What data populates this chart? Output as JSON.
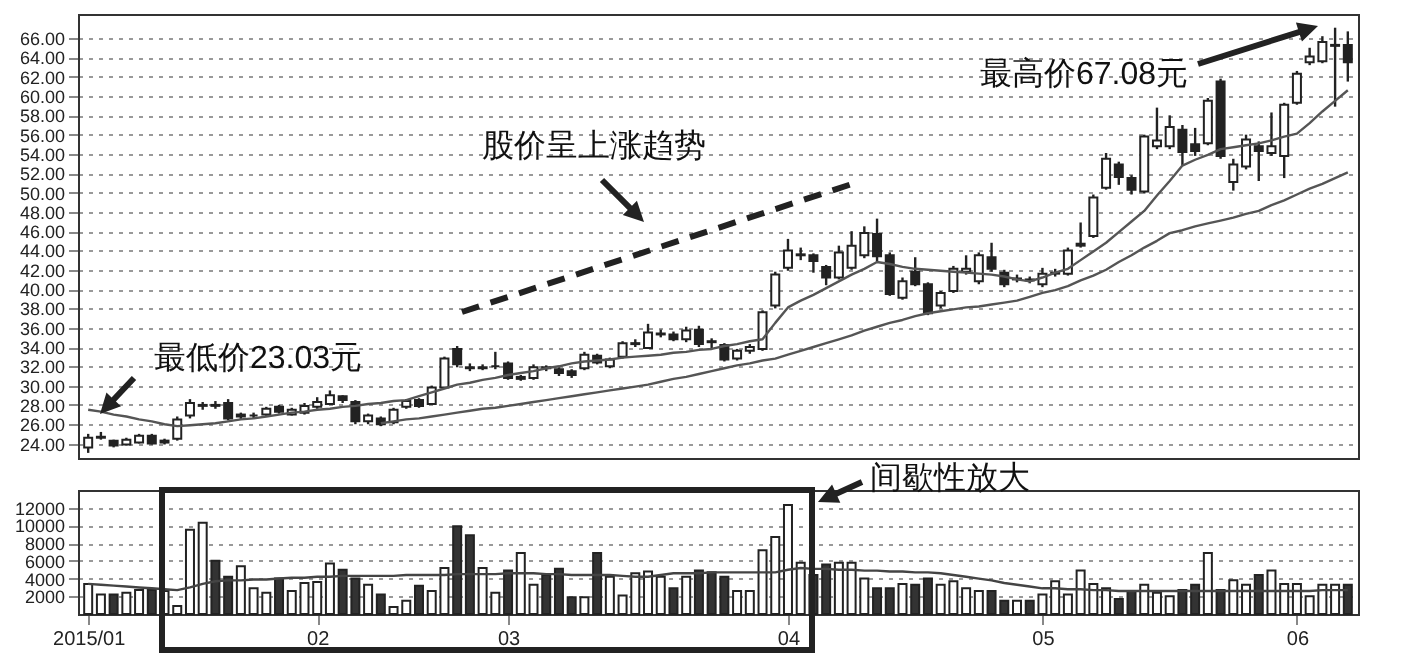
{
  "chart_data": [
    {
      "type": "candlestick",
      "color": "#222222",
      "categories": [
        "2015/01",
        null,
        null,
        null,
        null,
        null,
        null,
        null,
        null,
        null,
        null,
        null,
        null,
        null,
        null,
        null,
        null,
        null,
        "02",
        null,
        null,
        null,
        null,
        null,
        null,
        null,
        null,
        null,
        null,
        null,
        null,
        null,
        null,
        "03",
        null,
        null,
        null,
        null,
        null,
        null,
        null,
        null,
        null,
        null,
        null,
        null,
        null,
        null,
        null,
        null,
        null,
        null,
        null,
        null,
        null,
        "04",
        null,
        null,
        null,
        null,
        null,
        null,
        null,
        null,
        null,
        null,
        null,
        null,
        null,
        null,
        null,
        null,
        null,
        null,
        null,
        "05",
        null,
        null,
        null,
        null,
        null,
        null,
        null,
        null,
        null,
        null,
        null,
        null,
        null,
        null,
        null,
        null,
        null,
        null,
        null,
        "06",
        null,
        null,
        null,
        null
      ],
      "ohlc": [
        [
          23.6,
          25,
          23.03,
          24.6
        ],
        [
          24.6,
          25.2,
          24.4,
          24.7
        ],
        [
          24.3,
          24.4,
          23.6,
          23.8
        ],
        [
          23.9,
          24.6,
          23.8,
          24.4
        ],
        [
          24.1,
          25,
          24,
          24.8
        ],
        [
          24.8,
          25,
          23.9,
          24
        ],
        [
          24.1,
          24.5,
          23.9,
          24.3
        ],
        [
          24.5,
          26.8,
          24.3,
          26.5
        ],
        [
          26.9,
          28.6,
          26.6,
          28.2
        ],
        [
          27.9,
          28.3,
          27.5,
          28
        ],
        [
          28,
          28.4,
          27.6,
          27.9
        ],
        [
          28.2,
          28.6,
          26.4,
          26.6
        ],
        [
          26.8,
          27.2,
          26.5,
          27
        ],
        [
          26.9,
          27.2,
          26.6,
          26.9
        ],
        [
          27,
          27.8,
          26.8,
          27.6
        ],
        [
          27.8,
          28,
          27.1,
          27.3
        ],
        [
          27,
          27.7,
          26.9,
          27.5
        ],
        [
          27.2,
          28.2,
          27,
          27.9
        ],
        [
          27.8,
          28.8,
          27.6,
          28.3
        ],
        [
          28.1,
          29.5,
          28,
          29
        ],
        [
          28.9,
          29,
          28.2,
          28.5
        ],
        [
          28.3,
          28.5,
          26,
          26.3
        ],
        [
          26.3,
          27.1,
          26,
          26.9
        ],
        [
          26.6,
          26.8,
          25.8,
          26
        ],
        [
          26.2,
          27.7,
          26,
          27.5
        ],
        [
          27.8,
          28.6,
          27.6,
          28.4
        ],
        [
          28.5,
          28.7,
          27.7,
          27.9
        ],
        [
          28.1,
          30,
          28,
          29.8
        ],
        [
          29.8,
          33,
          29.7,
          32.8
        ],
        [
          33.8,
          34.1,
          31.9,
          32.2
        ],
        [
          31.9,
          32.3,
          31.5,
          31.8
        ],
        [
          31.8,
          32.2,
          31.6,
          31.9
        ],
        [
          32,
          33.5,
          31.7,
          32
        ],
        [
          32.3,
          32.5,
          30.6,
          30.8
        ],
        [
          30.7,
          31.1,
          30.5,
          30.9
        ],
        [
          30.8,
          32.2,
          30.6,
          31.9
        ],
        [
          31.9,
          32.1,
          31.5,
          31.8
        ],
        [
          31.7,
          31.9,
          31,
          31.3
        ],
        [
          31.5,
          31.7,
          30.8,
          31.1
        ],
        [
          31.8,
          33.5,
          31.6,
          33.2
        ],
        [
          33.1,
          33.3,
          32.2,
          32.4
        ],
        [
          32,
          32.9,
          31.8,
          32.7
        ],
        [
          33,
          34.6,
          32.8,
          34.4
        ],
        [
          34.3,
          34.8,
          34,
          34.4
        ],
        [
          33.9,
          36.4,
          33.8,
          35.5
        ],
        [
          35.3,
          35.8,
          35,
          35.4
        ],
        [
          35.3,
          35.6,
          34.6,
          34.8
        ],
        [
          34.8,
          36.1,
          34.5,
          35.7
        ],
        [
          35.8,
          36.2,
          34,
          34.3
        ],
        [
          34.6,
          34.9,
          33.8,
          34.5
        ],
        [
          34.2,
          34.4,
          32.5,
          32.7
        ],
        [
          32.8,
          33.8,
          32.6,
          33.6
        ],
        [
          33.6,
          34.3,
          33.3,
          34
        ],
        [
          33.8,
          37.8,
          33.6,
          37.6
        ],
        [
          38.3,
          41.8,
          38,
          41.5
        ],
        [
          42.2,
          45.2,
          41.9,
          44
        ],
        [
          43.5,
          44.3,
          43,
          43.6
        ],
        [
          43.5,
          43.7,
          41.7,
          42.9
        ],
        [
          42.3,
          42.5,
          40.4,
          41.2
        ],
        [
          41.2,
          44.5,
          41,
          43.8
        ],
        [
          42.2,
          46,
          42,
          44.5
        ],
        [
          43.5,
          46.5,
          43.2,
          45.8
        ],
        [
          45.7,
          47.3,
          42.8,
          43.4
        ],
        [
          43.5,
          43.8,
          39.3,
          39.5
        ],
        [
          39.1,
          41.2,
          38.9,
          40.8
        ],
        [
          41.8,
          43.3,
          40.3,
          40.5
        ],
        [
          40.5,
          40.7,
          37.3,
          37.5
        ],
        [
          38.3,
          39.8,
          38,
          39.6
        ],
        [
          39.8,
          42.4,
          39.6,
          42.1
        ],
        [
          41.8,
          43.5,
          41.5,
          42.1
        ],
        [
          40.8,
          43.8,
          40.5,
          43.5
        ],
        [
          43.3,
          44.8,
          41.8,
          42.1
        ],
        [
          41.7,
          42,
          40.2,
          40.5
        ],
        [
          41,
          41.5,
          40.7,
          41.1
        ],
        [
          41,
          41.3,
          40.6,
          40.9
        ],
        [
          40.5,
          42.2,
          40.2,
          41.6
        ],
        [
          41.6,
          42.1,
          41.3,
          41.7
        ],
        [
          41.6,
          44.3,
          41.4,
          44
        ],
        [
          44.5,
          46.9,
          44.3,
          44.7
        ],
        [
          45.5,
          49.8,
          45.3,
          49.5
        ],
        [
          50.5,
          54.1,
          50.3,
          53.5
        ],
        [
          52.9,
          53.2,
          50.8,
          51.6
        ],
        [
          51.5,
          51.8,
          49.8,
          50.3
        ],
        [
          50.1,
          56,
          49.9,
          55.8
        ],
        [
          54.8,
          58.8,
          54.5,
          55.4
        ],
        [
          54.8,
          58,
          54.5,
          56.8
        ],
        [
          56.5,
          57,
          52.8,
          54.2
        ],
        [
          55,
          56.7,
          53.8,
          54.3
        ],
        [
          55.1,
          59.8,
          54.9,
          59.5
        ],
        [
          61.5,
          61.8,
          53.5,
          53.8
        ],
        [
          51.1,
          53.5,
          50.2,
          52.9
        ],
        [
          52.7,
          56,
          52.4,
          55.5
        ],
        [
          54.8,
          55.3,
          51.2,
          54.3
        ],
        [
          54.1,
          58.3,
          53.8,
          54.8
        ],
        [
          53.8,
          59.3,
          51.5,
          59.1
        ],
        [
          59.3,
          62.6,
          59.1,
          62.3
        ],
        [
          63.5,
          65,
          63.2,
          64.1
        ],
        [
          63.6,
          66.2,
          63.4,
          65.6
        ],
        [
          65.2,
          67.08,
          58.9,
          65.3
        ],
        [
          65.3,
          66.7,
          61.5,
          63.5
        ]
      ],
      "series": [
        {
          "type": "line",
          "color": "#555555",
          "values": [
            27.5,
            27.3,
            27.0,
            26.8,
            26.5,
            26.3,
            26.0,
            25.8,
            25.9,
            26.0,
            26.1,
            26.3,
            26.5,
            26.6,
            26.8,
            27.0,
            27.2,
            27.3,
            27.5,
            27.6,
            27.8,
            27.9,
            28.1,
            28.2,
            28.4,
            28.5,
            28.9,
            29.3,
            29.7,
            30.1,
            30.3,
            30.6,
            30.8,
            31.1,
            31.3,
            31.5,
            31.8,
            32.0,
            32.3,
            32.5,
            32.6,
            32.7,
            32.9,
            33.0,
            33.1,
            33.2,
            33.4,
            33.5,
            33.7,
            33.8,
            34.1,
            34.3,
            34.6,
            34.8,
            36.5,
            38.1,
            38.8,
            39.4,
            40.1,
            40.8,
            41.5,
            42.1,
            42.8,
            42.6,
            42.3,
            42.1,
            42.0,
            41.9,
            41.8,
            41.7,
            41.6,
            41.5,
            41.3,
            41.0,
            40.8,
            41.2,
            41.7,
            42.1,
            43.0,
            43.9,
            44.8,
            45.9,
            47.0,
            48.1,
            49.7,
            51.2,
            52.8,
            53.4,
            53.9,
            54.5,
            54.7,
            54.9,
            55.1,
            55.4,
            55.8,
            56.1,
            57.2,
            58.4,
            59.5,
            60.6
          ]
        },
        {
          "type": "line",
          "color": "#555555",
          "values": [
            null,
            null,
            null,
            null,
            null,
            null,
            null,
            null,
            null,
            null,
            null,
            null,
            null,
            null,
            null,
            null,
            null,
            null,
            null,
            null,
            null,
            null,
            null,
            26.1,
            26.3,
            26.5,
            26.6,
            26.8,
            27.0,
            27.2,
            27.4,
            27.6,
            27.7,
            27.9,
            28.1,
            28.3,
            28.5,
            28.7,
            28.9,
            29.1,
            29.3,
            29.5,
            29.7,
            29.9,
            30.1,
            30.4,
            30.7,
            30.9,
            31.2,
            31.5,
            31.8,
            32.1,
            32.3,
            32.6,
            32.8,
            33.2,
            33.6,
            34.0,
            34.4,
            34.8,
            35.2,
            35.7,
            36.1,
            36.5,
            36.8,
            37.2,
            37.5,
            37.7,
            37.9,
            38.1,
            38.2,
            38.4,
            38.6,
            38.8,
            39.2,
            39.6,
            39.9,
            40.3,
            40.9,
            41.4,
            42.0,
            42.8,
            43.5,
            44.3,
            45.0,
            45.8,
            46.1,
            46.5,
            46.8,
            47.1,
            47.4,
            47.8,
            48.1,
            48.7,
            49.2,
            49.8,
            50.4,
            50.9,
            51.5,
            52.1
          ]
        }
      ],
      "ylim": [
        22.5,
        68.5
      ],
      "yticks": [
        {
          "value": 24,
          "label": "24.00"
        },
        {
          "value": 26,
          "label": "26.00"
        },
        {
          "value": 28,
          "label": "28.00"
        },
        {
          "value": 30,
          "label": "30.00"
        },
        {
          "value": 32,
          "label": "32.00"
        },
        {
          "value": 34,
          "label": "34.00"
        },
        {
          "value": 36,
          "label": "36.00"
        },
        {
          "value": 38,
          "label": "38.00"
        },
        {
          "value": 40,
          "label": "40.00"
        },
        {
          "value": 42,
          "label": "42.00"
        },
        {
          "value": 44,
          "label": "44.00"
        },
        {
          "value": 46,
          "label": "46.00"
        },
        {
          "value": 48,
          "label": "48.00"
        },
        {
          "value": 50,
          "label": "50.00"
        },
        {
          "value": 52,
          "label": "52.00"
        },
        {
          "value": 54,
          "label": "54.00"
        },
        {
          "value": 56,
          "label": "56.00"
        },
        {
          "value": 58,
          "label": "58.00"
        },
        {
          "value": 60,
          "label": "60.00"
        },
        {
          "value": 62,
          "label": "62.00"
        },
        {
          "value": 64,
          "label": "64.00"
        },
        {
          "value": 66,
          "label": "66.00"
        }
      ],
      "grid": "y",
      "tick_labels": "y",
      "annotations": [
        "最低价23.03元",
        "最高价67.08元",
        "股价呈上涨趋势"
      ]
    },
    {
      "type": "bar",
      "categories": [
        "2015/01",
        null,
        null,
        null,
        null,
        null,
        null,
        null,
        null,
        null,
        null,
        null,
        null,
        null,
        null,
        null,
        null,
        null,
        "02",
        null,
        null,
        null,
        null,
        null,
        null,
        null,
        null,
        null,
        null,
        null,
        null,
        null,
        null,
        "03",
        null,
        null,
        null,
        null,
        null,
        null,
        null,
        null,
        null,
        null,
        null,
        null,
        null,
        null,
        null,
        null,
        null,
        null,
        null,
        null,
        null,
        "04",
        null,
        null,
        null,
        null,
        null,
        null,
        null,
        null,
        null,
        null,
        null,
        null,
        null,
        null,
        null,
        null,
        null,
        null,
        null,
        "05",
        null,
        null,
        null,
        null,
        null,
        null,
        null,
        null,
        null,
        null,
        null,
        null,
        null,
        null,
        null,
        null,
        null,
        null,
        null,
        "06",
        null,
        null,
        null,
        null
      ],
      "series": [
        {
          "type": "bar",
          "values": [
            3400,
            2200,
            2200,
            2400,
            2700,
            2700,
            2600,
            900,
            9500,
            10300,
            6000,
            4200,
            5400,
            2900,
            2400,
            4000,
            2600,
            3500,
            3600,
            5700,
            5000,
            4000,
            3300,
            2200,
            800,
            1500,
            3200,
            2600,
            5200,
            9900,
            8900,
            5200,
            2400,
            4900,
            6900,
            3300,
            4400,
            5100,
            1900,
            1900,
            6900,
            4200,
            2100,
            4600,
            4800,
            4200,
            2900,
            4200,
            4900,
            4700,
            4200,
            2600,
            2600,
            7200,
            8700,
            12300,
            5800,
            4400,
            5600,
            5800,
            5800,
            4000,
            2900,
            2900,
            3400,
            3300,
            4000,
            3300,
            3700,
            2900,
            2600,
            2600,
            1500,
            1500,
            1500,
            2200,
            3700,
            2200,
            4900,
            3400,
            2900,
            1700,
            2600,
            3300,
            2400,
            2000,
            2700,
            3300,
            6900,
            2700,
            3800,
            3300,
            4400,
            4900,
            3400,
            3400,
            2000,
            3300,
            3300,
            3300
          ],
          "colors": [
            "#ffffff",
            "#ffffff",
            "#333333",
            "#ffffff",
            "#ffffff",
            "#333333",
            "#ffffff",
            "#ffffff",
            "#ffffff",
            "#ffffff",
            "#333333",
            "#333333",
            "#ffffff",
            "#ffffff",
            "#ffffff",
            "#333333",
            "#ffffff",
            "#ffffff",
            "#ffffff",
            "#ffffff",
            "#333333",
            "#333333",
            "#ffffff",
            "#333333",
            "#ffffff",
            "#ffffff",
            "#333333",
            "#ffffff",
            "#ffffff",
            "#333333",
            "#333333",
            "#ffffff",
            "#ffffff",
            "#333333",
            "#ffffff",
            "#ffffff",
            "#333333",
            "#333333",
            "#333333",
            "#ffffff",
            "#333333",
            "#ffffff",
            "#ffffff",
            "#ffffff",
            "#ffffff",
            "#ffffff",
            "#333333",
            "#ffffff",
            "#333333",
            "#333333",
            "#333333",
            "#ffffff",
            "#ffffff",
            "#ffffff",
            "#ffffff",
            "#ffffff",
            "#ffffff",
            "#333333",
            "#333333",
            "#ffffff",
            "#ffffff",
            "#ffffff",
            "#333333",
            "#333333",
            "#ffffff",
            "#333333",
            "#333333",
            "#ffffff",
            "#ffffff",
            "#ffffff",
            "#ffffff",
            "#333333",
            "#333333",
            "#ffffff",
            "#333333",
            "#ffffff",
            "#ffffff",
            "#ffffff",
            "#ffffff",
            "#ffffff",
            "#ffffff",
            "#333333",
            "#333333",
            "#ffffff",
            "#ffffff",
            "#ffffff",
            "#333333",
            "#333333",
            "#ffffff",
            "#333333",
            "#ffffff",
            "#ffffff",
            "#333333",
            "#ffffff",
            "#ffffff",
            "#ffffff",
            "#ffffff",
            "#ffffff",
            "#ffffff",
            "#333333"
          ]
        },
        {
          "type": "line",
          "color": "#444444",
          "values": [
            3400,
            3300,
            3200,
            3100,
            3000,
            2900,
            2800,
            2700,
            3000,
            3400,
            3700,
            3800,
            3800,
            3900,
            3900,
            4000,
            4100,
            4100,
            4200,
            4200,
            4300,
            4300,
            4300,
            4300,
            4300,
            4400,
            4400,
            4400,
            4400,
            4500,
            4500,
            4500,
            4500,
            4600,
            4600,
            4600,
            4500,
            4500,
            4400,
            4400,
            4400,
            4400,
            4300,
            4200,
            4200,
            4400,
            4600,
            4600,
            4600,
            4700,
            4700,
            4700,
            4700,
            4700,
            4700,
            5000,
            5200,
            5100,
            5100,
            5000,
            5000,
            4900,
            4900,
            4800,
            4800,
            4700,
            4700,
            4600,
            4400,
            4200,
            4000,
            3800,
            3500,
            3300,
            3100,
            2900,
            2900,
            2800,
            2800,
            2700,
            2700,
            2600,
            2600,
            2600,
            2600,
            2600,
            2600,
            2600,
            2600,
            2600,
            2600,
            2600,
            2600,
            2600,
            2600,
            2600,
            2600,
            2700,
            2700,
            2700
          ]
        }
      ],
      "ylim": [
        0,
        14000
      ],
      "yticks": [
        2000,
        4000,
        6000,
        8000,
        10000,
        12000
      ],
      "grid": "y",
      "annotations": [
        "间歇性放大"
      ]
    }
  ]
}
